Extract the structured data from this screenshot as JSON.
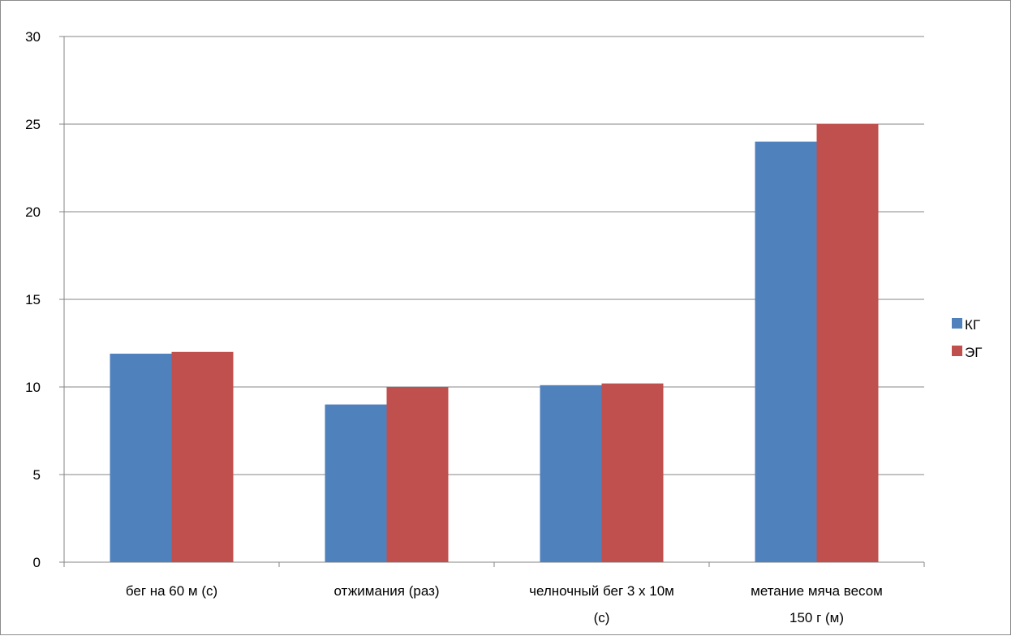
{
  "chart_data": {
    "type": "bar",
    "categories": [
      [
        "бег на 60 м (с)"
      ],
      [
        "отжимания (раз)"
      ],
      [
        "челночный бег 3 х 10м",
        "(с)"
      ],
      [
        "метание мяча весом",
        "150 г (м)"
      ]
    ],
    "series": [
      {
        "name": "КГ",
        "color": "#4f81bd",
        "values": [
          11.9,
          9,
          10.1,
          24
        ]
      },
      {
        "name": "ЭГ",
        "color": "#c0504d",
        "values": [
          12,
          10,
          10.2,
          25
        ]
      }
    ],
    "ylim": [
      0,
      30
    ],
    "yticks": [
      0,
      5,
      10,
      15,
      20,
      25,
      30
    ],
    "grid": true,
    "legend_position": "right"
  }
}
